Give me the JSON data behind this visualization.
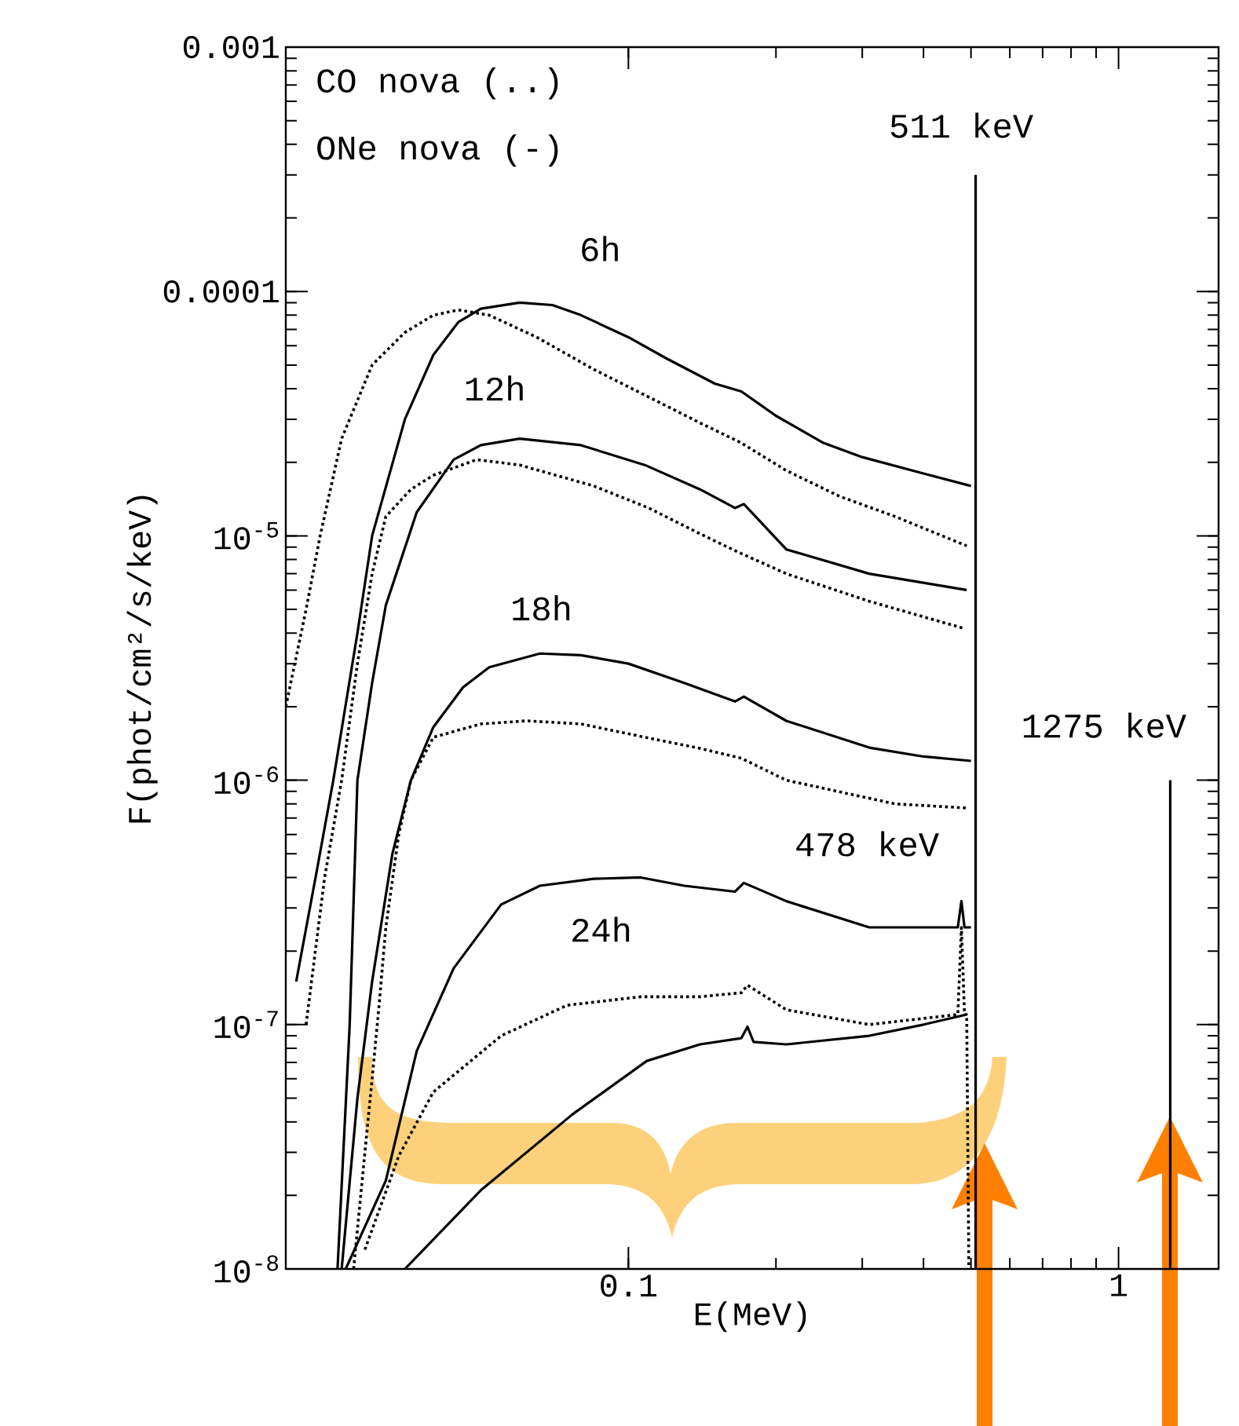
{
  "chart_data": {
    "type": "line",
    "log": "xy",
    "xlabel": "E(MeV)",
    "ylabel": "F(phot/cm²/s/keV)",
    "xlim": [
      0.02,
      1.6
    ],
    "ylim": [
      1e-08,
      0.001
    ],
    "xticks": [
      0.1,
      1
    ],
    "yticks": [
      {
        "value": 1e-08,
        "label": "10$^{-8}$"
      },
      {
        "value": 1e-07,
        "label": "10$^{-7}$"
      },
      {
        "value": 1e-06,
        "label": "10$^{-6}$"
      },
      {
        "value": 1e-05,
        "label": "10$^{-5}$"
      },
      0.0001,
      0.001
    ],
    "marker": "none",
    "series": [
      {
        "color": "#000000",
        "line_style": "solid",
        "x": [
          0.021,
          0.023,
          0.025,
          0.028,
          0.03,
          0.035,
          0.04,
          0.045,
          0.05,
          0.06,
          0.07,
          0.08,
          0.1,
          0.12,
          0.15,
          0.17,
          0.2,
          0.25,
          0.3,
          0.4,
          0.5
        ],
        "values": [
          1.5e-07,
          4e-07,
          1e-06,
          4e-06,
          1e-05,
          3e-05,
          5.5e-05,
          7.5e-05,
          8.5e-05,
          9e-05,
          8.8e-05,
          8e-05,
          6.5e-05,
          5.3e-05,
          4.2e-05,
          3.9e-05,
          3.1e-05,
          2.4e-05,
          2.1e-05,
          1.8e-05,
          1.6e-05
        ]
      },
      {
        "color": "#000000",
        "line_style": "dotted",
        "x": [
          0.02,
          0.022,
          0.0235,
          0.026,
          0.03,
          0.035,
          0.04,
          0.045,
          0.052,
          0.065,
          0.085,
          0.11,
          0.14,
          0.17,
          0.21,
          0.27,
          0.35,
          0.49
        ],
        "values": [
          2e-06,
          5e-06,
          1e-05,
          2.5e-05,
          5e-05,
          6.8e-05,
          8e-05,
          8.4e-05,
          8e-05,
          6.5e-05,
          4.8e-05,
          3.7e-05,
          2.9e-05,
          2.4e-05,
          1.85e-05,
          1.45e-05,
          1.2e-05,
          9.1e-06
        ]
      },
      {
        "color": "#000000",
        "line_style": "solid",
        "x": [
          0.0255,
          0.027,
          0.028,
          0.03,
          0.032,
          0.037,
          0.044,
          0.05,
          0.06,
          0.08,
          0.108,
          0.14,
          0.165,
          0.172,
          0.21,
          0.31,
          0.49
        ],
        "values": [
          1e-08,
          1e-07,
          1e-06,
          2.5e-06,
          5.2e-06,
          1.25e-05,
          2.05e-05,
          2.35e-05,
          2.5e-05,
          2.35e-05,
          1.95e-05,
          1.55e-05,
          1.3e-05,
          1.35e-05,
          8.8e-06,
          7e-06,
          6e-06
        ]
      },
      {
        "color": "#000000",
        "line_style": "dotted",
        "x": [
          0.022,
          0.024,
          0.026,
          0.028,
          0.03,
          0.032,
          0.036,
          0.04,
          0.049,
          0.06,
          0.085,
          0.11,
          0.14,
          0.165,
          0.21,
          0.31,
          0.48
        ],
        "values": [
          1e-07,
          4e-07,
          1e-06,
          3e-06,
          7e-06,
          1.2e-05,
          1.55e-05,
          1.77e-05,
          2.05e-05,
          1.95e-05,
          1.6e-05,
          1.3e-05,
          1.02e-05,
          8.7e-06,
          7e-06,
          5.4e-06,
          4.2e-06
        ]
      },
      {
        "color": "#000000",
        "line_style": "solid",
        "x": [
          0.026,
          0.028,
          0.03,
          0.033,
          0.036,
          0.04,
          0.046,
          0.052,
          0.066,
          0.08,
          0.1,
          0.13,
          0.165,
          0.172,
          0.21,
          0.31,
          0.4,
          0.5
        ],
        "values": [
          1e-08,
          5e-08,
          1.5e-07,
          5e-07,
          1e-06,
          1.65e-06,
          2.4e-06,
          2.9e-06,
          3.3e-06,
          3.25e-06,
          3e-06,
          2.5e-06,
          2.1e-06,
          2.2e-06,
          1.75e-06,
          1.36e-06,
          1.25e-06,
          1.2e-06
        ]
      },
      {
        "color": "#000000",
        "line_style": "dotted",
        "x": [
          0.0275,
          0.029,
          0.03,
          0.031,
          0.032,
          0.034,
          0.036,
          0.04,
          0.05,
          0.062,
          0.08,
          0.108,
          0.14,
          0.17,
          0.21,
          0.35,
          0.49
        ],
        "values": [
          1e-08,
          3e-08,
          6e-08,
          1.2e-07,
          2.5e-07,
          6e-07,
          1e-06,
          1.5e-06,
          1.7e-06,
          1.75e-06,
          1.7e-06,
          1.5e-06,
          1.35e-06,
          1.23e-06,
          1e-06,
          8e-07,
          7.7e-07
        ]
      },
      {
        "color": "#000000",
        "line_style": "solid",
        "x": [
          0.0265,
          0.032,
          0.037,
          0.044,
          0.055,
          0.066,
          0.085,
          0.106,
          0.13,
          0.165,
          0.172,
          0.21,
          0.31,
          0.47,
          0.478,
          0.485,
          0.5
        ],
        "values": [
          1e-08,
          2.3e-08,
          7.8e-08,
          1.7e-07,
          3.1e-07,
          3.7e-07,
          3.95e-07,
          4e-07,
          3.7e-07,
          3.5e-07,
          3.8e-07,
          3.2e-07,
          2.5e-07,
          2.5e-07,
          3.2e-07,
          2.5e-07,
          2.5e-07
        ]
      },
      {
        "color": "#000000",
        "line_style": "dotted",
        "x": [
          0.029,
          0.034,
          0.04,
          0.055,
          0.075,
          0.106,
          0.14,
          0.17,
          0.175,
          0.21,
          0.31,
          0.47,
          0.478,
          0.485,
          0.49,
          0.495
        ],
        "values": [
          1.2e-08,
          2.9e-08,
          5.3e-08,
          9e-08,
          1.2e-07,
          1.3e-07,
          1.3e-07,
          1.35e-07,
          1.45e-07,
          1.15e-07,
          1e-07,
          1.1e-07,
          2.5e-07,
          1.1e-07,
          1.1e-07,
          1e-08
        ]
      },
      {
        "color": "#000000",
        "line_style": "solid",
        "x": [
          0.035,
          0.05,
          0.077,
          0.109,
          0.14,
          0.17,
          0.175,
          0.18,
          0.21,
          0.31,
          0.4,
          0.49
        ],
        "values": [
          1e-08,
          2.1e-08,
          4.3e-08,
          7.1e-08,
          8.3e-08,
          8.8e-08,
          9.8e-08,
          8.5e-08,
          8.3e-08,
          9e-08,
          1e-07,
          1.1e-07
        ]
      },
      {
        "color": "#000000",
        "line_style": "solid",
        "x": [
          0.511,
          0.511
        ],
        "values": [
          1e-08,
          0.0003
        ]
      },
      {
        "color": "#000000",
        "line_style": "solid",
        "x": [
          1.275,
          1.275
        ],
        "values": [
          1e-08,
          1e-06
        ]
      }
    ],
    "annotations": [
      "CO nova (..)",
      "ONe nova (-)",
      "6h",
      "12h",
      "18h",
      "24h",
      "478 keV",
      "511 keV",
      "1275 keV"
    ]
  }
}
